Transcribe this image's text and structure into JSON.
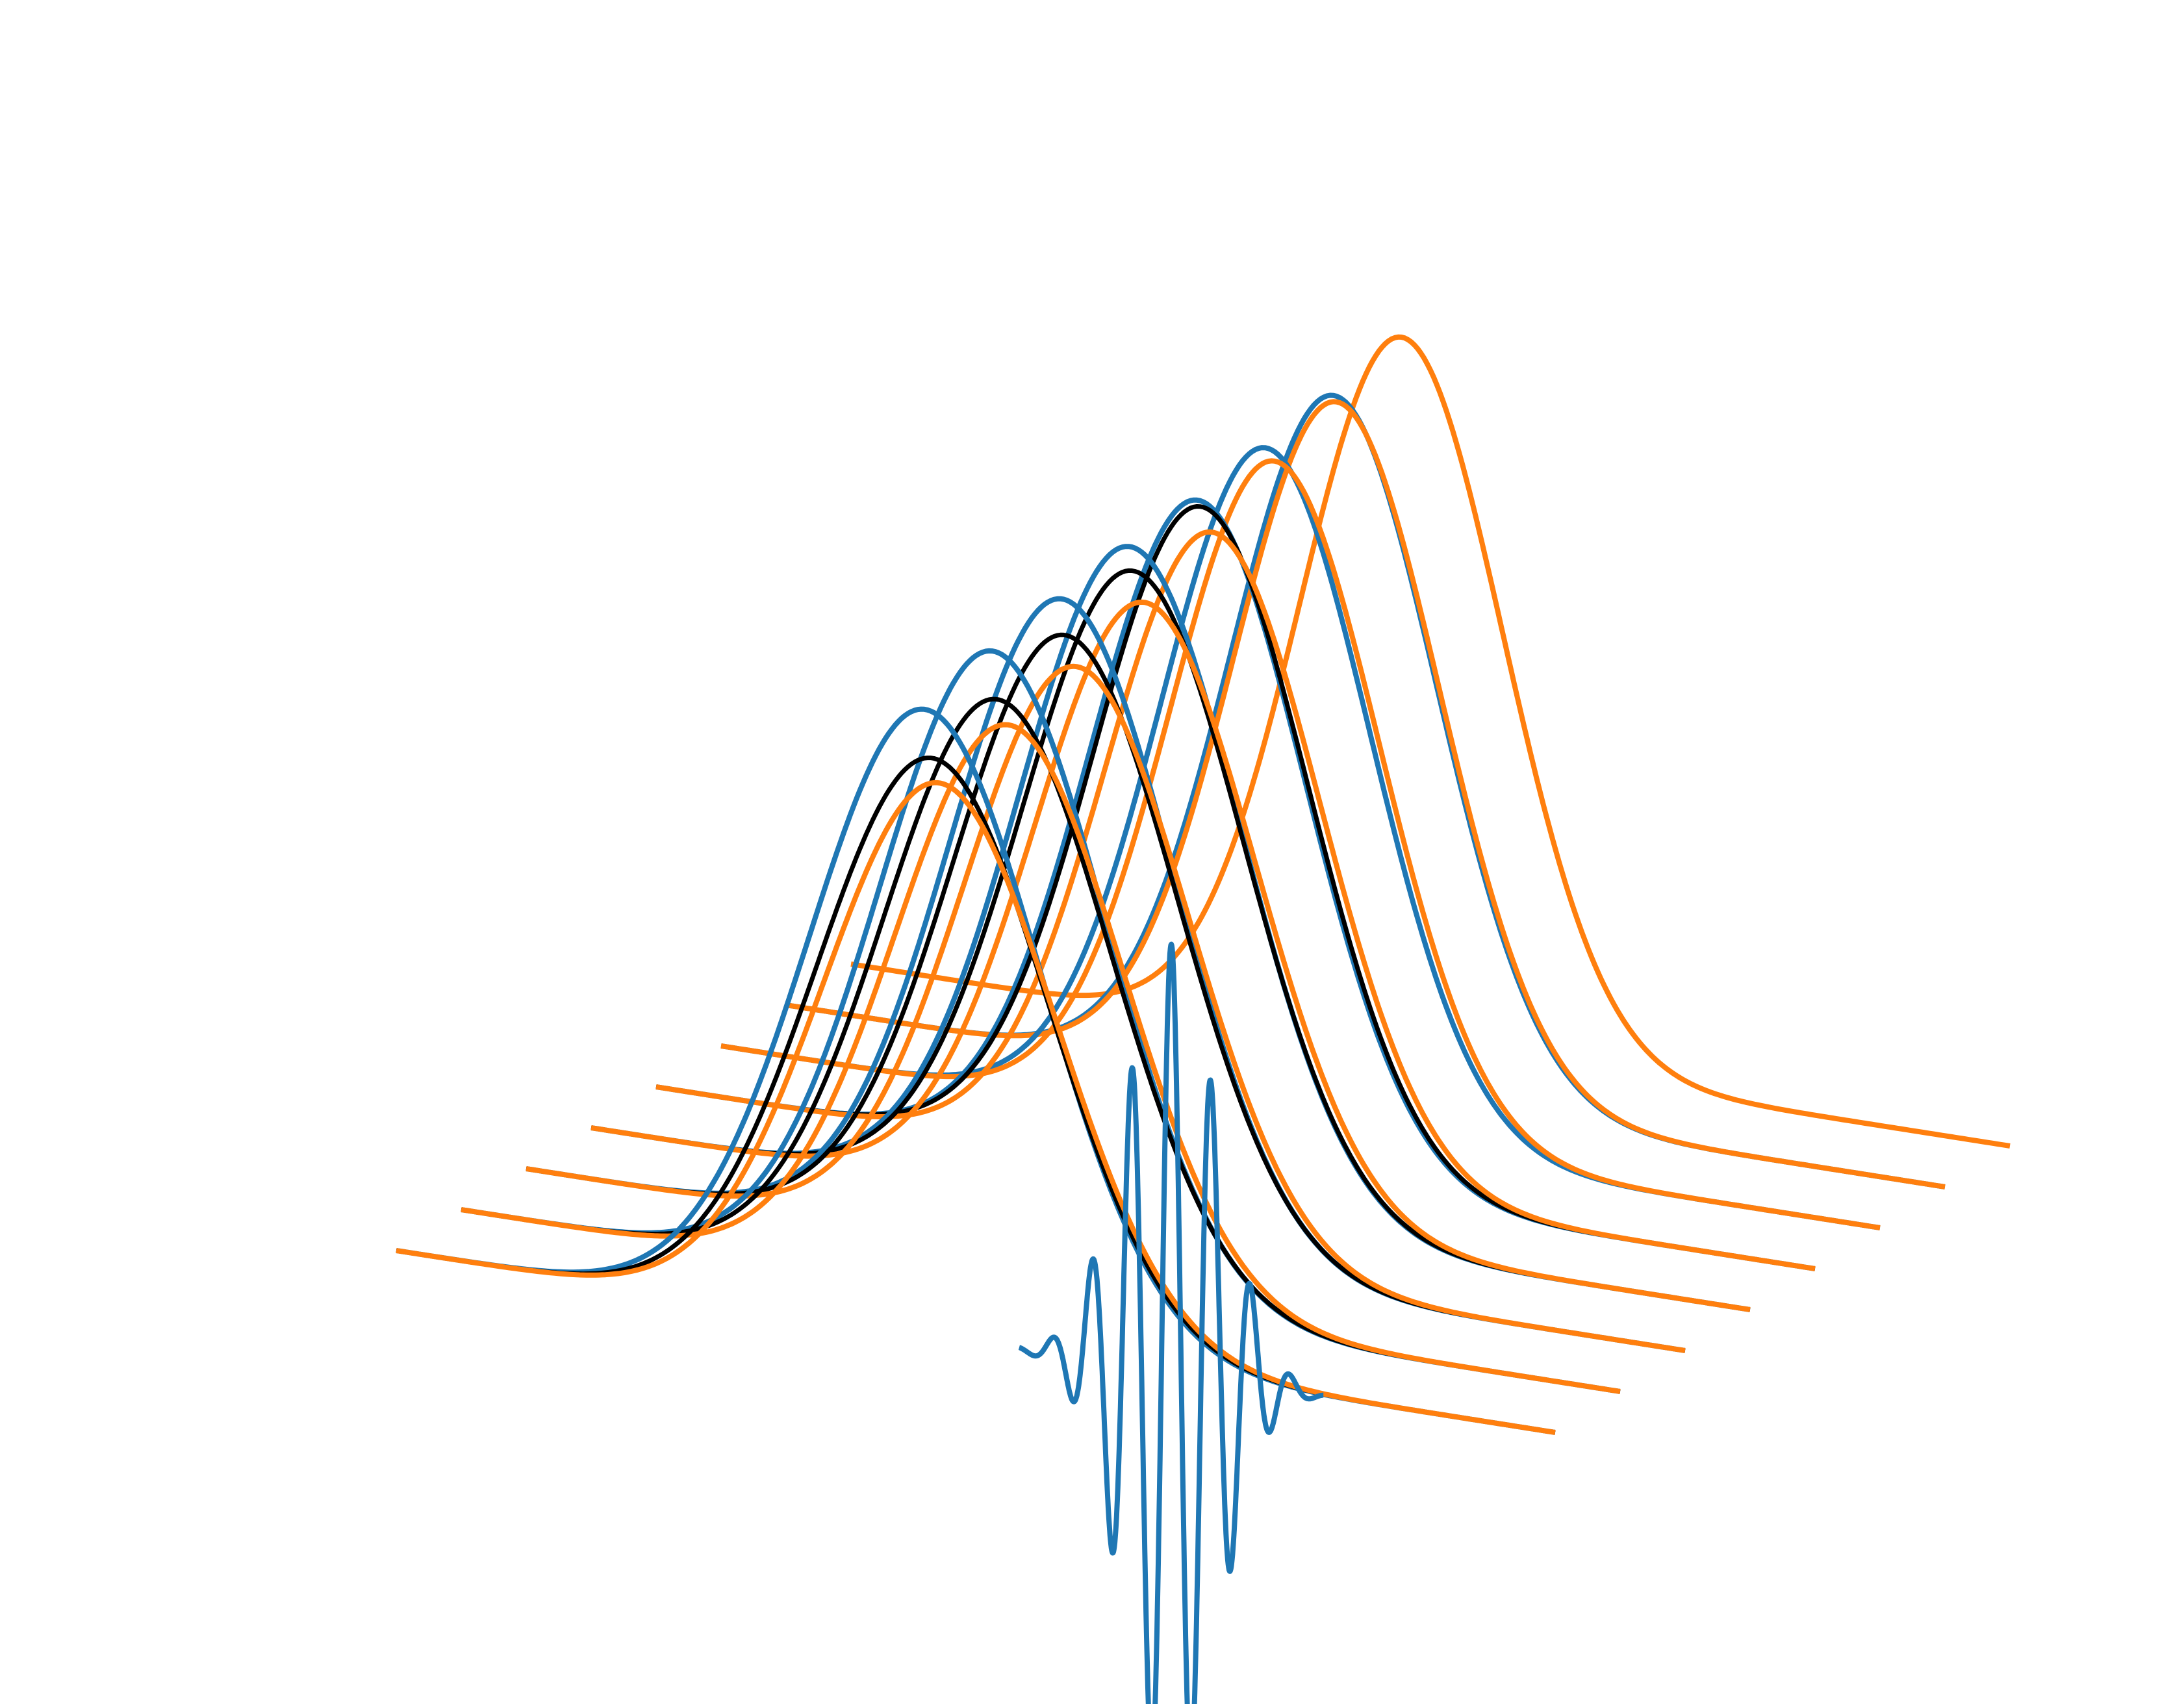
{
  "chart_data": {
    "type": "line",
    "projection": "3d-waterfall",
    "title": "",
    "xlabel": "",
    "ylabel": "",
    "zlabel": "",
    "axes_visible": false,
    "grid": false,
    "legend": "none",
    "x_range": [
      -4,
      4
    ],
    "z_range": [
      -0.6,
      1.6
    ],
    "colors": {
      "tab_blue": "#1f77b4",
      "tab_orange": "#ff7f0e",
      "black": "#000000"
    },
    "traces": [
      {
        "slice": 0,
        "color": "#1f77b4",
        "kind": "gaussian",
        "amplitude": 1.05,
        "center": -0.35,
        "sigma": 0.8,
        "tail": 0.0
      },
      {
        "slice": 0,
        "color": "#000000",
        "kind": "gaussian",
        "amplitude": 0.97,
        "center": -0.3,
        "sigma": 0.8,
        "tail": 0.0
      },
      {
        "slice": 0,
        "color": "#ff7f0e",
        "kind": "gaussian",
        "amplitude": 0.93,
        "center": -0.25,
        "sigma": 0.8,
        "tail": 0.0
      },
      {
        "slice": 1,
        "color": "#1f77b4",
        "kind": "gaussian",
        "amplitude": 1.08,
        "center": -0.33,
        "sigma": 0.78,
        "tail": 0.0
      },
      {
        "slice": 1,
        "color": "#000000",
        "kind": "gaussian",
        "amplitude": 1.0,
        "center": -0.3,
        "sigma": 0.78,
        "tail": 0.0
      },
      {
        "slice": 1,
        "color": "#ff7f0e",
        "kind": "gaussian",
        "amplitude": 0.96,
        "center": -0.22,
        "sigma": 0.78,
        "tail": 0.0
      },
      {
        "slice": 2,
        "color": "#1f77b4",
        "kind": "gaussian",
        "amplitude": 1.1,
        "center": -0.3,
        "sigma": 0.77,
        "tail": 0.0
      },
      {
        "slice": 2,
        "color": "#000000",
        "kind": "gaussian",
        "amplitude": 1.04,
        "center": -0.28,
        "sigma": 0.77,
        "tail": 0.0
      },
      {
        "slice": 2,
        "color": "#ff7f0e",
        "kind": "gaussian",
        "amplitude": 0.99,
        "center": -0.2,
        "sigma": 0.77,
        "tail": 0.0
      },
      {
        "slice": 3,
        "color": "#1f77b4",
        "kind": "gaussian",
        "amplitude": 1.12,
        "center": -0.28,
        "sigma": 0.76,
        "tail": 0.0
      },
      {
        "slice": 3,
        "color": "#000000",
        "kind": "gaussian",
        "amplitude": 1.08,
        "center": -0.26,
        "sigma": 0.76,
        "tail": 0.0
      },
      {
        "slice": 3,
        "color": "#ff7f0e",
        "kind": "gaussian",
        "amplitude": 1.03,
        "center": -0.18,
        "sigma": 0.76,
        "tail": 0.0
      },
      {
        "slice": 4,
        "color": "#1f77b4",
        "kind": "gaussian",
        "amplitude": 1.13,
        "center": -0.26,
        "sigma": 0.74,
        "tail": 0.0
      },
      {
        "slice": 4,
        "color": "#000000",
        "kind": "gaussian",
        "amplitude": 1.12,
        "center": -0.24,
        "sigma": 0.74,
        "tail": 0.0
      },
      {
        "slice": 4,
        "color": "#ff7f0e",
        "kind": "gaussian",
        "amplitude": 1.08,
        "center": -0.16,
        "sigma": 0.74,
        "tail": 0.0
      },
      {
        "slice": 5,
        "color": "#1f77b4",
        "kind": "gaussian",
        "amplitude": 1.15,
        "center": -0.24,
        "sigma": 0.72,
        "tail": 0.0
      },
      {
        "slice": 5,
        "color": "#ff7f0e",
        "kind": "gaussian",
        "amplitude": 1.13,
        "center": -0.18,
        "sigma": 0.72,
        "tail": 0.0
      },
      {
        "slice": 6,
        "color": "#1f77b4",
        "kind": "gaussian",
        "amplitude": 1.17,
        "center": -0.22,
        "sigma": 0.71,
        "tail": 0.0
      },
      {
        "slice": 6,
        "color": "#ff7f0e",
        "kind": "gaussian",
        "amplitude": 1.16,
        "center": -0.2,
        "sigma": 0.71,
        "tail": 0.0
      },
      {
        "slice": 7,
        "color": "#ff7f0e",
        "kind": "gaussian",
        "amplitude": 1.2,
        "center": -0.2,
        "sigma": 0.7,
        "tail": 0.0
      },
      {
        "slice": 0,
        "color": "#1f77b4",
        "kind": "oscillation",
        "amplitude": 0.72,
        "center": 1.35,
        "sigma": 0.32,
        "frequency": 2.7
      }
    ]
  }
}
